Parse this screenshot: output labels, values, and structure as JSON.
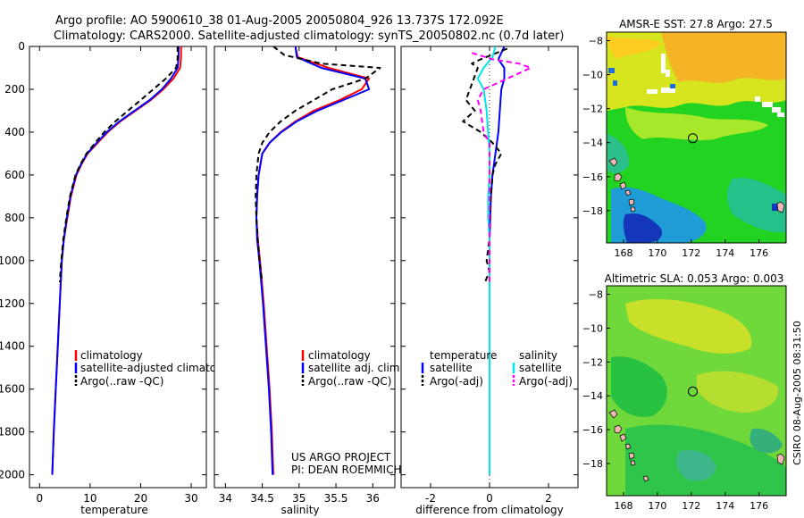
{
  "header": {
    "title_line1": "Argo profile: AO 5900610_38 01-Aug-2005 20050804_926 13.737S 172.092E",
    "title_line2": "Climatology: CARS2000. Satellite-adjusted climatology: synTS_20050802.nc (0.7d later)"
  },
  "side_label": "CSIRO 08-Aug-2005 08:31:50",
  "project_label": {
    "line1": "US ARGO PROJECT",
    "line2": "PI: DEAN ROEMMICH"
  },
  "colors": {
    "climatology": "#ff0000",
    "satellite": "#0000ff",
    "argo": "#000000",
    "salinity_satellite": "#00e5e5",
    "salinity_argo": "#ff00ff"
  },
  "chart_data": [
    {
      "id": "temperature",
      "type": "line",
      "xlabel": "temperature",
      "ylabel": "",
      "xlim": [
        -2,
        33
      ],
      "ylim": [
        2060,
        0
      ],
      "y_reversed": true,
      "xticks": [
        0,
        10,
        20,
        30
      ],
      "yticks": [
        0,
        200,
        400,
        600,
        800,
        1000,
        1200,
        1400,
        1600,
        1800,
        2000
      ],
      "legend": [
        "climatology",
        "satellite-adjusted climatology",
        "Argo(..raw -QC)"
      ],
      "series": [
        {
          "name": "climatology",
          "color": "#ff0000",
          "dash": "",
          "points": [
            [
              28.0,
              0
            ],
            [
              28.0,
              50
            ],
            [
              27.8,
              100
            ],
            [
              26.5,
              150
            ],
            [
              24.5,
              200
            ],
            [
              22.0,
              250
            ],
            [
              19.0,
              300
            ],
            [
              16.0,
              350
            ],
            [
              13.5,
              400
            ],
            [
              11.5,
              450
            ],
            [
              9.5,
              500
            ],
            [
              8.3,
              550
            ],
            [
              7.3,
              600
            ],
            [
              6.2,
              700
            ],
            [
              5.5,
              800
            ],
            [
              4.8,
              900
            ],
            [
              4.4,
              1000
            ],
            [
              4.0,
              1200
            ],
            [
              3.6,
              1400
            ],
            [
              3.2,
              1600
            ],
            [
              2.8,
              1800
            ],
            [
              2.5,
              2000
            ]
          ]
        },
        {
          "name": "satellite-adjusted climatology",
          "color": "#0000ff",
          "dash": "",
          "points": [
            [
              27.5,
              0
            ],
            [
              27.5,
              50
            ],
            [
              27.3,
              100
            ],
            [
              26.0,
              150
            ],
            [
              24.2,
              200
            ],
            [
              21.8,
              250
            ],
            [
              18.8,
              300
            ],
            [
              15.8,
              350
            ],
            [
              13.3,
              400
            ],
            [
              11.3,
              450
            ],
            [
              9.4,
              500
            ],
            [
              8.2,
              550
            ],
            [
              7.2,
              600
            ],
            [
              6.1,
              700
            ],
            [
              5.4,
              800
            ],
            [
              4.8,
              900
            ],
            [
              4.4,
              1000
            ],
            [
              4.0,
              1200
            ],
            [
              3.6,
              1400
            ],
            [
              3.2,
              1600
            ],
            [
              2.8,
              1800
            ],
            [
              2.5,
              2000
            ]
          ]
        },
        {
          "name": "Argo(..raw -QC)",
          "color": "#000000",
          "dash": "6,4",
          "points": [
            [
              27.3,
              0
            ],
            [
              27.3,
              60
            ],
            [
              27.0,
              100
            ],
            [
              25.0,
              150
            ],
            [
              22.5,
              200
            ],
            [
              20.0,
              250
            ],
            [
              17.5,
              300
            ],
            [
              15.0,
              350
            ],
            [
              12.8,
              400
            ],
            [
              11.0,
              450
            ],
            [
              9.3,
              500
            ],
            [
              8.1,
              550
            ],
            [
              7.1,
              600
            ],
            [
              6.0,
              700
            ],
            [
              5.3,
              800
            ],
            [
              4.7,
              900
            ],
            [
              4.3,
              1000
            ],
            [
              4.0,
              1100
            ]
          ]
        }
      ]
    },
    {
      "id": "salinity",
      "type": "line",
      "xlabel": "salinity",
      "ylabel": "",
      "xlim": [
        33.85,
        36.3
      ],
      "ylim": [
        2060,
        0
      ],
      "y_reversed": true,
      "xticks": [
        34,
        34.5,
        35,
        35.5,
        36
      ],
      "legend": [
        "climatology",
        "satellite adj. clim.",
        "Argo(..raw -QC)"
      ],
      "series": [
        {
          "name": "climatology",
          "color": "#ff0000",
          "dash": "",
          "points": [
            [
              34.95,
              0
            ],
            [
              34.98,
              50
            ],
            [
              35.4,
              100
            ],
            [
              35.95,
              150
            ],
            [
              35.85,
              200
            ],
            [
              35.55,
              250
            ],
            [
              35.2,
              300
            ],
            [
              34.95,
              350
            ],
            [
              34.75,
              400
            ],
            [
              34.6,
              450
            ],
            [
              34.5,
              500
            ],
            [
              34.45,
              600
            ],
            [
              34.43,
              700
            ],
            [
              34.42,
              800
            ],
            [
              34.44,
              900
            ],
            [
              34.47,
              1000
            ],
            [
              34.52,
              1200
            ],
            [
              34.56,
              1400
            ],
            [
              34.6,
              1600
            ],
            [
              34.63,
              1800
            ],
            [
              34.65,
              2000
            ]
          ]
        },
        {
          "name": "satellite adj. clim.",
          "color": "#0000ff",
          "dash": "",
          "points": [
            [
              34.95,
              0
            ],
            [
              34.97,
              50
            ],
            [
              35.3,
              100
            ],
            [
              35.9,
              150
            ],
            [
              35.95,
              200
            ],
            [
              35.6,
              250
            ],
            [
              35.25,
              300
            ],
            [
              34.97,
              350
            ],
            [
              34.76,
              400
            ],
            [
              34.6,
              450
            ],
            [
              34.5,
              500
            ],
            [
              34.45,
              600
            ],
            [
              34.43,
              700
            ],
            [
              34.42,
              800
            ],
            [
              34.43,
              900
            ],
            [
              34.46,
              1000
            ],
            [
              34.51,
              1200
            ],
            [
              34.55,
              1400
            ],
            [
              34.59,
              1600
            ],
            [
              34.62,
              1800
            ],
            [
              34.64,
              2000
            ]
          ]
        },
        {
          "name": "Argo(..raw -QC)",
          "color": "#000000",
          "dash": "6,4",
          "points": [
            [
              34.65,
              0
            ],
            [
              34.8,
              40
            ],
            [
              35.3,
              80
            ],
            [
              36.1,
              100
            ],
            [
              35.9,
              150
            ],
            [
              35.45,
              200
            ],
            [
              35.2,
              250
            ],
            [
              34.95,
              300
            ],
            [
              34.75,
              350
            ],
            [
              34.6,
              400
            ],
            [
              34.5,
              450
            ],
            [
              34.45,
              500
            ],
            [
              34.42,
              600
            ],
            [
              34.41,
              700
            ],
            [
              34.42,
              800
            ],
            [
              34.44,
              900
            ],
            [
              34.46,
              1000
            ],
            [
              34.5,
              1100
            ]
          ]
        }
      ]
    },
    {
      "id": "difference",
      "type": "line",
      "xlabel": "difference from climatology",
      "ylabel": "",
      "xlim": [
        -3,
        3
      ],
      "ylim": [
        2060,
        0
      ],
      "y_reversed": true,
      "xticks": [
        -2,
        0,
        2
      ],
      "legend_groups": [
        {
          "title": "temperature",
          "items": [
            "satellite",
            "Argo(-adj)"
          ]
        },
        {
          "title": "salinity",
          "items": [
            "satellite",
            "Argo(-adj)"
          ]
        }
      ],
      "series": [
        {
          "name": "temperature satellite",
          "color": "#0000ff",
          "dash": "",
          "points": [
            [
              0.5,
              0
            ],
            [
              0.4,
              30
            ],
            [
              0.3,
              60
            ],
            [
              0.5,
              100
            ],
            [
              0.5,
              150
            ],
            [
              0.4,
              200
            ],
            [
              0.35,
              300
            ],
            [
              0.3,
              400
            ],
            [
              0.2,
              500
            ],
            [
              0.1,
              600
            ],
            [
              0.05,
              700
            ],
            [
              0.02,
              800
            ],
            [
              0,
              900
            ],
            [
              0,
              1000
            ],
            [
              0,
              1200
            ],
            [
              0,
              1400
            ],
            [
              0,
              1600
            ],
            [
              0,
              1800
            ],
            [
              0,
              2000
            ]
          ]
        },
        {
          "name": "temperature Argo(-adj)",
          "color": "#000000",
          "dash": "6,4",
          "points": [
            [
              0.6,
              10
            ],
            [
              -0.3,
              60
            ],
            [
              -0.6,
              80
            ],
            [
              -0.4,
              100
            ],
            [
              -0.8,
              250
            ],
            [
              -0.5,
              300
            ],
            [
              -0.9,
              350
            ],
            [
              -0.3,
              400
            ],
            [
              0.1,
              450
            ],
            [
              0.4,
              500
            ],
            [
              0.2,
              550
            ],
            [
              0.1,
              600
            ],
            [
              0.05,
              700
            ],
            [
              0.02,
              800
            ],
            [
              0,
              900
            ],
            [
              -0.1,
              1000
            ],
            [
              0,
              1050
            ],
            [
              -0.15,
              1100
            ]
          ]
        },
        {
          "name": "salinity satellite",
          "color": "#00e5e5",
          "dash": "",
          "points": [
            [
              0.2,
              0
            ],
            [
              0.1,
              50
            ],
            [
              -0.2,
              100
            ],
            [
              -0.4,
              150
            ],
            [
              -0.2,
              200
            ],
            [
              -0.1,
              300
            ],
            [
              -0.05,
              400
            ],
            [
              0,
              500
            ],
            [
              0,
              600
            ],
            [
              -0.05,
              700
            ],
            [
              -0.05,
              800
            ],
            [
              0,
              900
            ],
            [
              0,
              1000
            ],
            [
              0,
              1200
            ],
            [
              0,
              1400
            ],
            [
              0,
              1600
            ],
            [
              0,
              1800
            ],
            [
              0,
              2000
            ]
          ]
        },
        {
          "name": "salinity Argo(-adj)",
          "color": "#ff00ff",
          "dash": "6,4",
          "points": [
            [
              -0.6,
              30
            ],
            [
              0.1,
              60
            ],
            [
              1.0,
              80
            ],
            [
              1.4,
              100
            ],
            [
              0.6,
              150
            ],
            [
              -0.2,
              200
            ],
            [
              -0.4,
              250
            ],
            [
              -0.3,
              300
            ],
            [
              -0.2,
              400
            ],
            [
              0,
              450
            ],
            [
              0,
              500
            ],
            [
              0,
              700
            ],
            [
              0,
              1000
            ],
            [
              0,
              1100
            ]
          ]
        }
      ]
    },
    {
      "id": "sst_map",
      "type": "heatmap",
      "title": "AMSR-E SST: 27.8 Argo: 27.5",
      "xlim": [
        167,
        177.6
      ],
      "ylim": [
        -19.9,
        -7.5
      ],
      "xticks": [
        168,
        170,
        172,
        174,
        176
      ],
      "yticks": [
        -8,
        -10,
        -12,
        -14,
        -16,
        -18
      ],
      "marker": {
        "lon": 172.09,
        "lat": -13.74
      }
    },
    {
      "id": "sla_map",
      "type": "heatmap",
      "title": "Altimetric SLA: 0.053 Argo: 0.003",
      "xlim": [
        167,
        177.6
      ],
      "ylim": [
        -19.9,
        -7.5
      ],
      "xticks": [
        168,
        170,
        172,
        174,
        176
      ],
      "yticks": [
        -8,
        -10,
        -12,
        -14,
        -16,
        -18
      ],
      "marker": {
        "lon": 172.09,
        "lat": -13.74
      }
    }
  ]
}
